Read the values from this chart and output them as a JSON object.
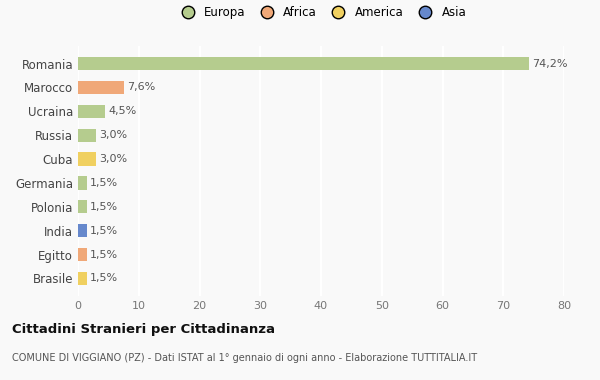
{
  "countries": [
    "Romania",
    "Marocco",
    "Ucraina",
    "Russia",
    "Cuba",
    "Germania",
    "Polonia",
    "India",
    "Egitto",
    "Brasile"
  ],
  "values": [
    74.2,
    7.6,
    4.5,
    3.0,
    3.0,
    1.5,
    1.5,
    1.5,
    1.5,
    1.5
  ],
  "labels": [
    "74,2%",
    "7,6%",
    "4,5%",
    "3,0%",
    "3,0%",
    "1,5%",
    "1,5%",
    "1,5%",
    "1,5%",
    "1,5%"
  ],
  "colors": [
    "#b5cc8e",
    "#f0a878",
    "#b5cc8e",
    "#b5cc8e",
    "#f0d060",
    "#b5cc8e",
    "#b5cc8e",
    "#6688cc",
    "#f0a878",
    "#f0d060"
  ],
  "legend_labels": [
    "Europa",
    "Africa",
    "America",
    "Asia"
  ],
  "legend_colors": [
    "#b5cc8e",
    "#f0a878",
    "#f0d060",
    "#6688cc"
  ],
  "title": "Cittadini Stranieri per Cittadinanza",
  "subtitle": "COMUNE DI VIGGIANO (PZ) - Dati ISTAT al 1° gennaio di ogni anno - Elaborazione TUTTITALIA.IT",
  "xlim": [
    0,
    80
  ],
  "xticks": [
    0,
    10,
    20,
    30,
    40,
    50,
    60,
    70,
    80
  ],
  "background_color": "#f9f9f9",
  "bar_height": 0.55
}
